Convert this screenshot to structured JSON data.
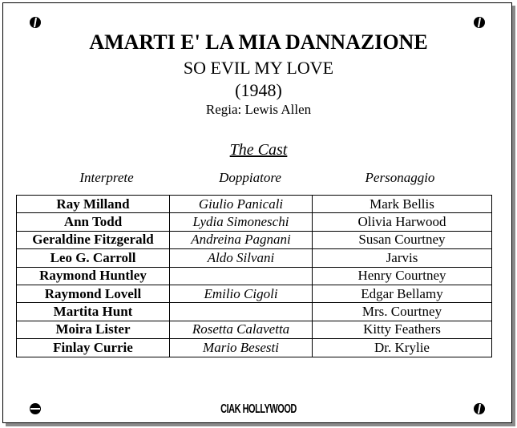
{
  "title_it": "AMARTI E' LA MIA DANNAZIONE",
  "title_en": "SO EVIL MY LOVE",
  "year": "(1948)",
  "director": "Regia: Lewis Allen",
  "cast_heading": "The Cast",
  "columns": [
    "Interprete",
    "Doppiatore",
    "Personaggio"
  ],
  "rows": [
    [
      "Ray Milland",
      "Giulio Panicali",
      "Mark Bellis"
    ],
    [
      "Ann Todd",
      "Lydia Simoneschi",
      "Olivia Harwood"
    ],
    [
      "Geraldine Fitzgerald",
      "Andreina Pagnani",
      "Susan Courtney"
    ],
    [
      "Leo G. Carroll",
      "Aldo Silvani",
      "Jarvis"
    ],
    [
      "Raymond Huntley",
      "",
      "Henry Courtney"
    ],
    [
      "Raymond Lovell",
      "Emilio Cigoli",
      "Edgar Bellamy"
    ],
    [
      "Martita Hunt",
      "",
      "Mrs. Courtney"
    ],
    [
      "Moira Lister",
      "Rosetta Calavetta",
      "Kitty Feathers"
    ],
    [
      "Finlay Currie",
      "Mario Besesti",
      "Dr. Krylie"
    ]
  ],
  "logo": "CIAK HOLLYWOOD"
}
